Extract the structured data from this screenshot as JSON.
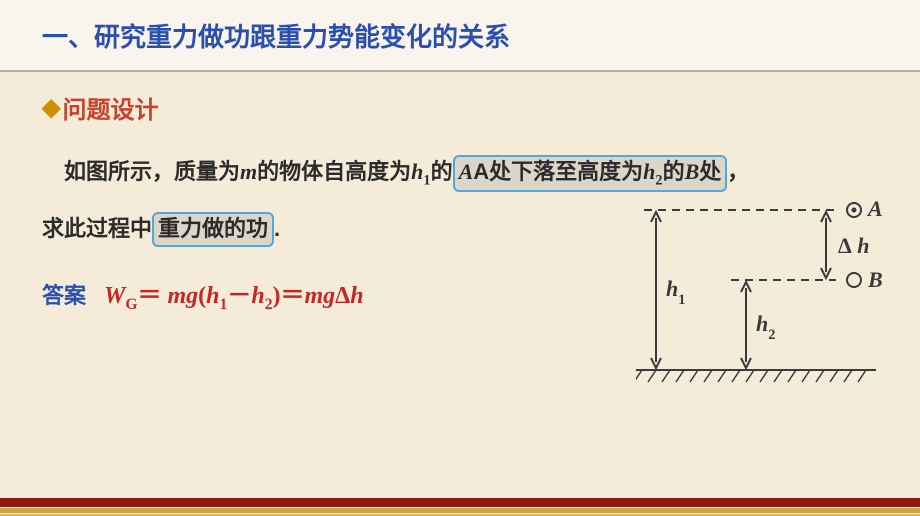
{
  "colors": {
    "slide_bg": "#f4ecd9",
    "header_bg": "#f9f5ec",
    "header_border": "#b0acb0",
    "title_text": "#2a4fb0",
    "subheading_text": "#c9422e",
    "diamond": "#cc9000",
    "body_text": "#2b2b2b",
    "highlight_border": "#52a7e0",
    "highlight_bg": "#dcd6c8",
    "answer_label": "#2a4fb0",
    "formula_text": "#c62626",
    "diagram_stroke": "#3a3a3a",
    "footer_dark": "#8a1a12",
    "footer_mid": "#caa746",
    "footer_light": "#d6b868"
  },
  "header": {
    "title": "一、研究重力做功跟重力势能变化的关系"
  },
  "subheading": {
    "bullet": "◆",
    "text": "问题设计"
  },
  "problem": {
    "pre": "如图所示，质量为",
    "m": "m",
    "mid1": "的物体自高度为",
    "h1": "h",
    "h1_sub": "1",
    "mid2": "的",
    "hi1_part": "A处下落至高度为",
    "h2": "h",
    "h2_sub": "2",
    "hi1_suffix": "的B处",
    "comma": "，",
    "line2_pre": "求此过程中",
    "hi2": "重力做的功",
    "period": "."
  },
  "answer": {
    "label": "答案",
    "formula_parts": {
      "W": "W",
      "G": "G",
      "eq1": "＝ ",
      "mg": "mg",
      "lp": "(",
      "h1": "h",
      "s1": "1",
      "minus": "－",
      "h2": "h",
      "s2": "2",
      "rp": ")",
      "eq2": "＝",
      "mg2": "mg",
      "delta": "Δ",
      "h": "h"
    }
  },
  "diagram": {
    "A_label": "A",
    "B_label": "B",
    "h1_label": "h",
    "h1_sub": "1",
    "h2_label": "h",
    "h2_sub": "2",
    "dh_label_delta": "Δ",
    "dh_label_h": "h",
    "stroke_width": 2,
    "font_size": 22
  }
}
